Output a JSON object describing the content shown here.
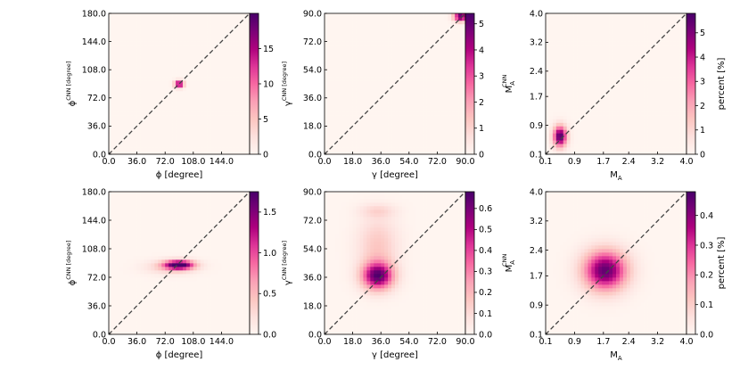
{
  "colors": {
    "colormap": [
      "#fff5f0",
      "#fde0dd",
      "#fcc5c0",
      "#fa9fb5",
      "#f768a1",
      "#dd3497",
      "#ae017e",
      "#7a0177",
      "#49006a"
    ],
    "diagonal": "#444444",
    "axis": "#000000"
  },
  "chart_data": [
    {
      "type": "heatmap",
      "title": "",
      "xlabel": "ϕ [degree]",
      "ylabel": "ϕ^CNN [degree]",
      "xlim": [
        0,
        180
      ],
      "ylim": [
        0,
        180
      ],
      "xticks": [
        "0.0",
        "36.0",
        "72.0",
        "108.0",
        "144.0"
      ],
      "xtick_values": [
        0,
        36,
        72,
        108,
        144
      ],
      "yticks": [
        "0.0",
        "36.0",
        "72.0",
        "108.0",
        "144.0",
        "180.0"
      ],
      "ytick_values": [
        0,
        36,
        72,
        108,
        144,
        180
      ],
      "colorbar": {
        "label": "",
        "max": 20,
        "ticks": [
          "0",
          "5",
          "10",
          "15"
        ],
        "tick_values": [
          0,
          5,
          10,
          15
        ]
      },
      "blobs": [
        {
          "x": 90,
          "y": 90,
          "sx": 4,
          "sy": 3,
          "peak": 20
        }
      ]
    },
    {
      "type": "heatmap",
      "title": "",
      "xlabel": "γ [degree]",
      "ylabel": "γ^CNN [degree]",
      "xlim": [
        0,
        90
      ],
      "ylim": [
        0,
        90
      ],
      "xticks": [
        "0.0",
        "18.0",
        "36.0",
        "54.0",
        "72.0",
        "90.0"
      ],
      "xtick_values": [
        0,
        18,
        36,
        54,
        72,
        90
      ],
      "yticks": [
        "0.0",
        "18.0",
        "36.0",
        "54.0",
        "72.0",
        "90.0"
      ],
      "ytick_values": [
        0,
        18,
        36,
        54,
        72,
        90
      ],
      "colorbar": {
        "label": "",
        "max": 5.4,
        "ticks": [
          "0",
          "1",
          "2",
          "3",
          "4",
          "5"
        ],
        "tick_values": [
          0,
          1,
          2,
          3,
          4,
          5
        ]
      },
      "blobs": [
        {
          "x": 87,
          "y": 88,
          "sx": 3,
          "sy": 2,
          "peak": 5.4
        }
      ]
    },
    {
      "type": "heatmap",
      "title": "",
      "xlabel": "M_A",
      "ylabel": "M_A^CNN",
      "xlim": [
        0.1,
        4.0
      ],
      "ylim": [
        0.1,
        4.0
      ],
      "xticks": [
        "0.1",
        "0.9",
        "1.7",
        "2.4",
        "3.2",
        "4.0"
      ],
      "xtick_values": [
        0.1,
        0.9,
        1.7,
        2.4,
        3.2,
        4.0
      ],
      "yticks": [
        "0.1",
        "0.9",
        "1.7",
        "2.4",
        "3.2",
        "4.0"
      ],
      "ytick_values": [
        0.1,
        0.9,
        1.7,
        2.4,
        3.2,
        4.0
      ],
      "colorbar": {
        "label": "percent [%]",
        "max": 5.8,
        "ticks": [
          "0",
          "1",
          "2",
          "3",
          "4",
          "5"
        ],
        "tick_values": [
          0,
          1,
          2,
          3,
          4,
          5
        ]
      },
      "blobs": [
        {
          "x": 0.5,
          "y": 0.6,
          "sx": 0.13,
          "sy": 0.2,
          "peak": 5.8
        }
      ]
    },
    {
      "type": "heatmap",
      "title": "",
      "xlabel": "ϕ [degree]",
      "ylabel": "ϕ^CNN [degree]",
      "xlim": [
        0,
        180
      ],
      "ylim": [
        0,
        180
      ],
      "xticks": [
        "0.0",
        "36.0",
        "72.0",
        "108.0",
        "144.0"
      ],
      "xtick_values": [
        0,
        36,
        72,
        108,
        144
      ],
      "yticks": [
        "0.0",
        "36.0",
        "72.0",
        "108.0",
        "144.0",
        "180.0"
      ],
      "ytick_values": [
        0,
        36,
        72,
        108,
        144,
        180
      ],
      "colorbar": {
        "label": "",
        "max": 1.75,
        "ticks": [
          "0.0",
          "0.5",
          "1.0",
          "1.5"
        ],
        "tick_values": [
          0,
          0.5,
          1.0,
          1.5
        ]
      },
      "blobs": [
        {
          "x": 90,
          "y": 88,
          "sx": 13,
          "sy": 4,
          "peak": 1.75
        },
        {
          "x": 80,
          "y": 85,
          "sx": 22,
          "sy": 6,
          "peak": 0.4
        }
      ]
    },
    {
      "type": "heatmap",
      "title": "",
      "xlabel": "γ [degree]",
      "ylabel": "γ^CNN [degree]",
      "xlim": [
        0,
        90
      ],
      "ylim": [
        0,
        90
      ],
      "xticks": [
        "0.0",
        "18.0",
        "36.0",
        "54.0",
        "72.0",
        "90.0"
      ],
      "xtick_values": [
        0,
        18,
        36,
        54,
        72,
        90
      ],
      "yticks": [
        "0.0",
        "18.0",
        "36.0",
        "54.0",
        "72.0",
        "90.0"
      ],
      "ytick_values": [
        0,
        18,
        36,
        54,
        72,
        90
      ],
      "colorbar": {
        "label": "",
        "max": 0.68,
        "ticks": [
          "0.0",
          "0.1",
          "0.2",
          "0.3",
          "0.4",
          "0.5",
          "0.6"
        ],
        "tick_values": [
          0,
          0.1,
          0.2,
          0.3,
          0.4,
          0.5,
          0.6
        ]
      },
      "blobs": [
        {
          "x": 34,
          "y": 37,
          "sx": 7,
          "sy": 6,
          "peak": 0.62
        },
        {
          "x": 34,
          "y": 56,
          "sx": 9,
          "sy": 13,
          "peak": 0.16
        },
        {
          "x": 34,
          "y": 78,
          "sx": 8,
          "sy": 3,
          "peak": 0.1
        }
      ]
    },
    {
      "type": "heatmap",
      "title": "",
      "xlabel": "M_A",
      "ylabel": "M_A^CNN",
      "xlim": [
        0.1,
        4.0
      ],
      "ylim": [
        0.1,
        4.0
      ],
      "xticks": [
        "0.1",
        "0.9",
        "1.7",
        "2.4",
        "3.2",
        "4.0"
      ],
      "xtick_values": [
        0.1,
        0.9,
        1.7,
        2.4,
        3.2,
        4.0
      ],
      "yticks": [
        "0.1",
        "0.9",
        "1.7",
        "2.4",
        "3.2",
        "4.0"
      ],
      "ytick_values": [
        0.1,
        0.9,
        1.7,
        2.4,
        3.2,
        4.0
      ],
      "colorbar": {
        "label": "percent [%]",
        "max": 0.48,
        "ticks": [
          "0.0",
          "0.1",
          "0.2",
          "0.3",
          "0.4"
        ],
        "tick_values": [
          0,
          0.1,
          0.2,
          0.3,
          0.4
        ]
      },
      "blobs": [
        {
          "x": 1.75,
          "y": 1.85,
          "sx": 0.42,
          "sy": 0.38,
          "peak": 0.45
        }
      ]
    }
  ]
}
